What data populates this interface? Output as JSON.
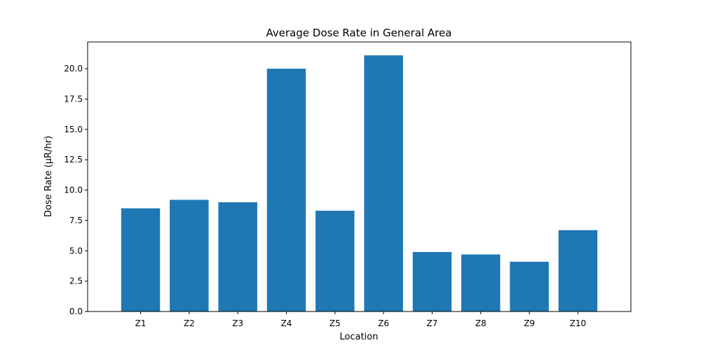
{
  "chart_data": {
    "type": "bar",
    "title": "Average Dose Rate in General Area",
    "xlabel": "Location",
    "ylabel": "Dose Rate (μR/hr)",
    "categories": [
      "Z1",
      "Z2",
      "Z3",
      "Z4",
      "Z5",
      "Z6",
      "Z7",
      "Z8",
      "Z9",
      "Z10"
    ],
    "values": [
      8.5,
      9.2,
      9.0,
      20.0,
      8.3,
      21.1,
      4.9,
      4.7,
      4.1,
      6.7
    ],
    "ylim": [
      0,
      22.2
    ],
    "yticks": [
      "0.0",
      "2.5",
      "5.0",
      "7.5",
      "10.0",
      "12.5",
      "15.0",
      "17.5",
      "20.0"
    ],
    "bar_color": "#1f77b4",
    "grid": false,
    "legend": "none"
  }
}
